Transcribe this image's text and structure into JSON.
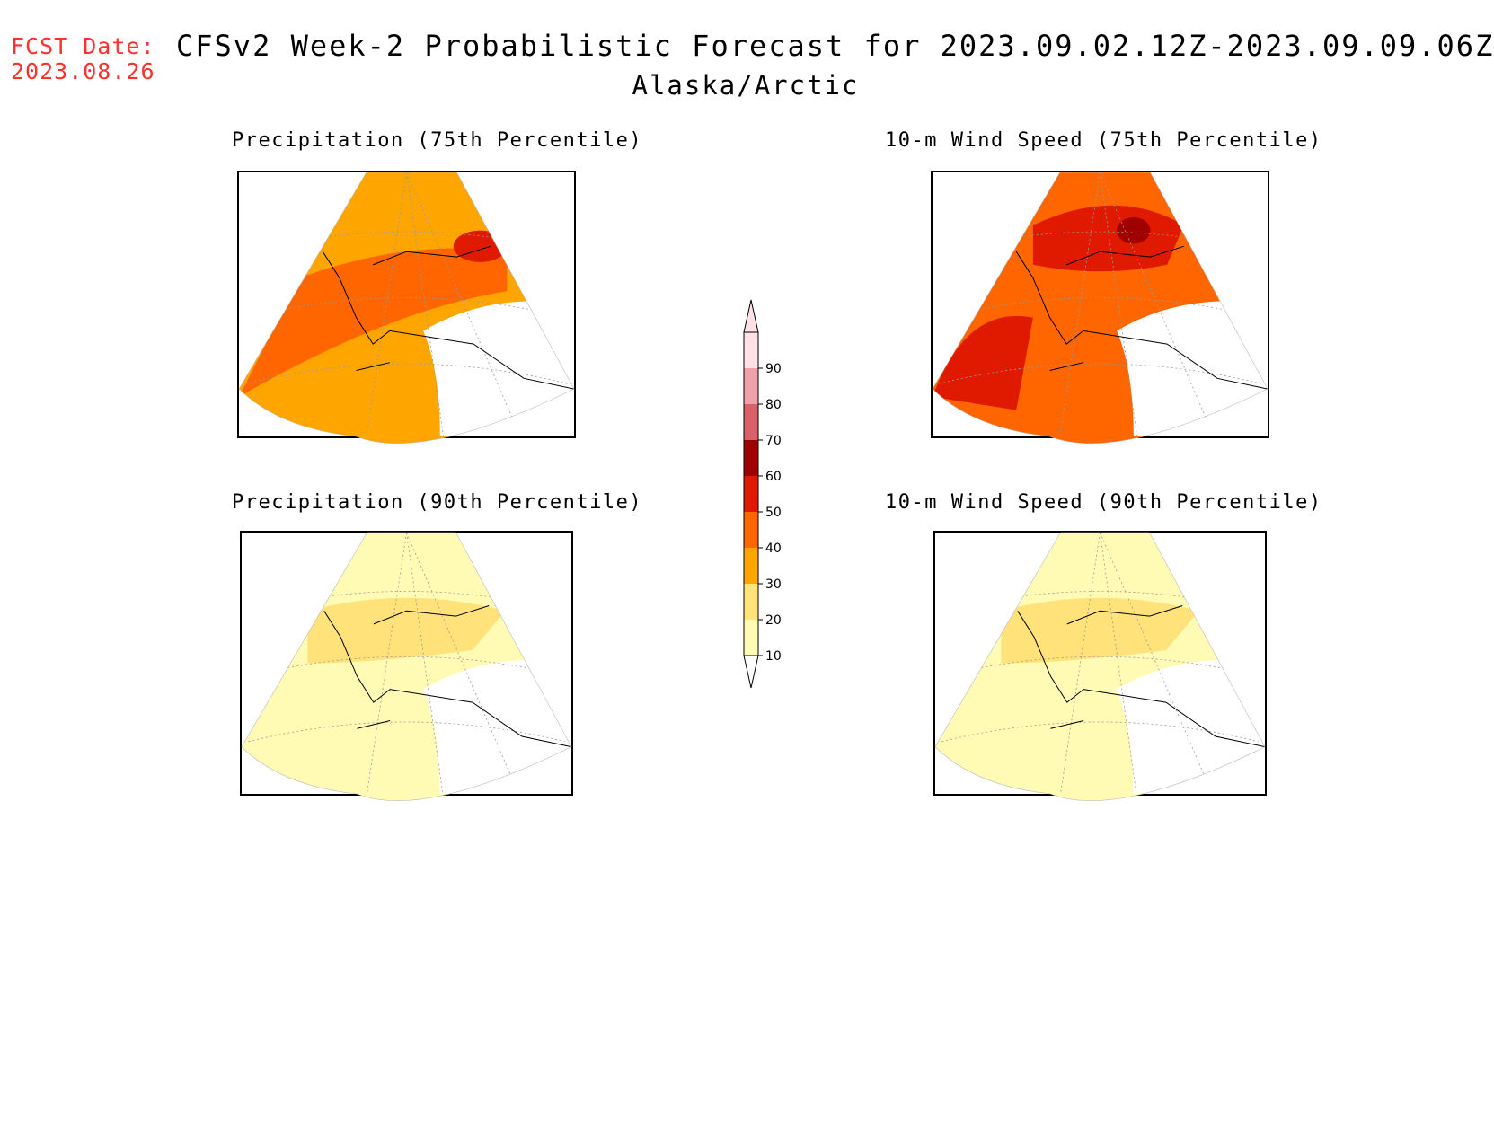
{
  "header": {
    "fcst_label": "FCST Date:",
    "fcst_date": "2023.08.26",
    "title": "CFSv2 Week-2 Probabilistic Forecast for 2023.09.02.12Z-2023.09.09.06Z",
    "subtitle": "Alaska/Arctic"
  },
  "panels": [
    {
      "title": "Precipitation (75th Percentile)",
      "dominant_probability": 30
    },
    {
      "title": "10-m Wind Speed (75th Percentile)",
      "dominant_probability": 40
    },
    {
      "title": "Precipitation (90th Percentile)",
      "dominant_probability": 10
    },
    {
      "title": "10-m Wind Speed (90th Percentile)",
      "dominant_probability": 10
    }
  ],
  "legend": {
    "levels": [
      10,
      20,
      30,
      40,
      50,
      60,
      70,
      80,
      90
    ],
    "level_labels": [
      "10",
      "20",
      "30",
      "40",
      "50",
      "60",
      "70",
      "80",
      "90"
    ],
    "colors": [
      "#fffbb5",
      "#ffe27a",
      "#ffa500",
      "#ff6600",
      "#e01a00",
      "#a00000",
      "#d8616a",
      "#f0a0a8",
      "#fde1e4"
    ]
  }
}
